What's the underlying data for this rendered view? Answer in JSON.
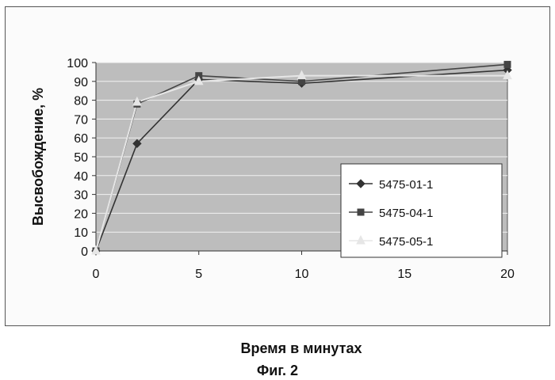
{
  "chart_data": {
    "type": "line",
    "xlabel": "Время в минутах",
    "ylabel": "Высвобождение, %",
    "caption": "Фиг. 2",
    "xlim": [
      0,
      20
    ],
    "ylim": [
      0,
      100
    ],
    "xticks": [
      0,
      5,
      10,
      15,
      20
    ],
    "yticks": [
      0,
      10,
      20,
      30,
      40,
      50,
      60,
      70,
      80,
      90,
      100
    ],
    "grid": "horizontal",
    "legend_position": "right",
    "series": [
      {
        "name": "5475-01-1",
        "marker": "diamond",
        "color": "#333333",
        "x": [
          0,
          2,
          5,
          10,
          20
        ],
        "y": [
          0,
          57,
          91,
          89,
          96
        ]
      },
      {
        "name": "5475-04-1",
        "marker": "square",
        "color": "#444444",
        "x": [
          0,
          2,
          5,
          10,
          20
        ],
        "y": [
          0,
          78,
          93,
          90,
          99
        ]
      },
      {
        "name": "5475-05-1",
        "marker": "triangle",
        "color": "#e6e6e6",
        "x": [
          0,
          2,
          5,
          10,
          20
        ],
        "y": [
          0,
          79,
          90,
          93,
          93
        ]
      }
    ]
  }
}
